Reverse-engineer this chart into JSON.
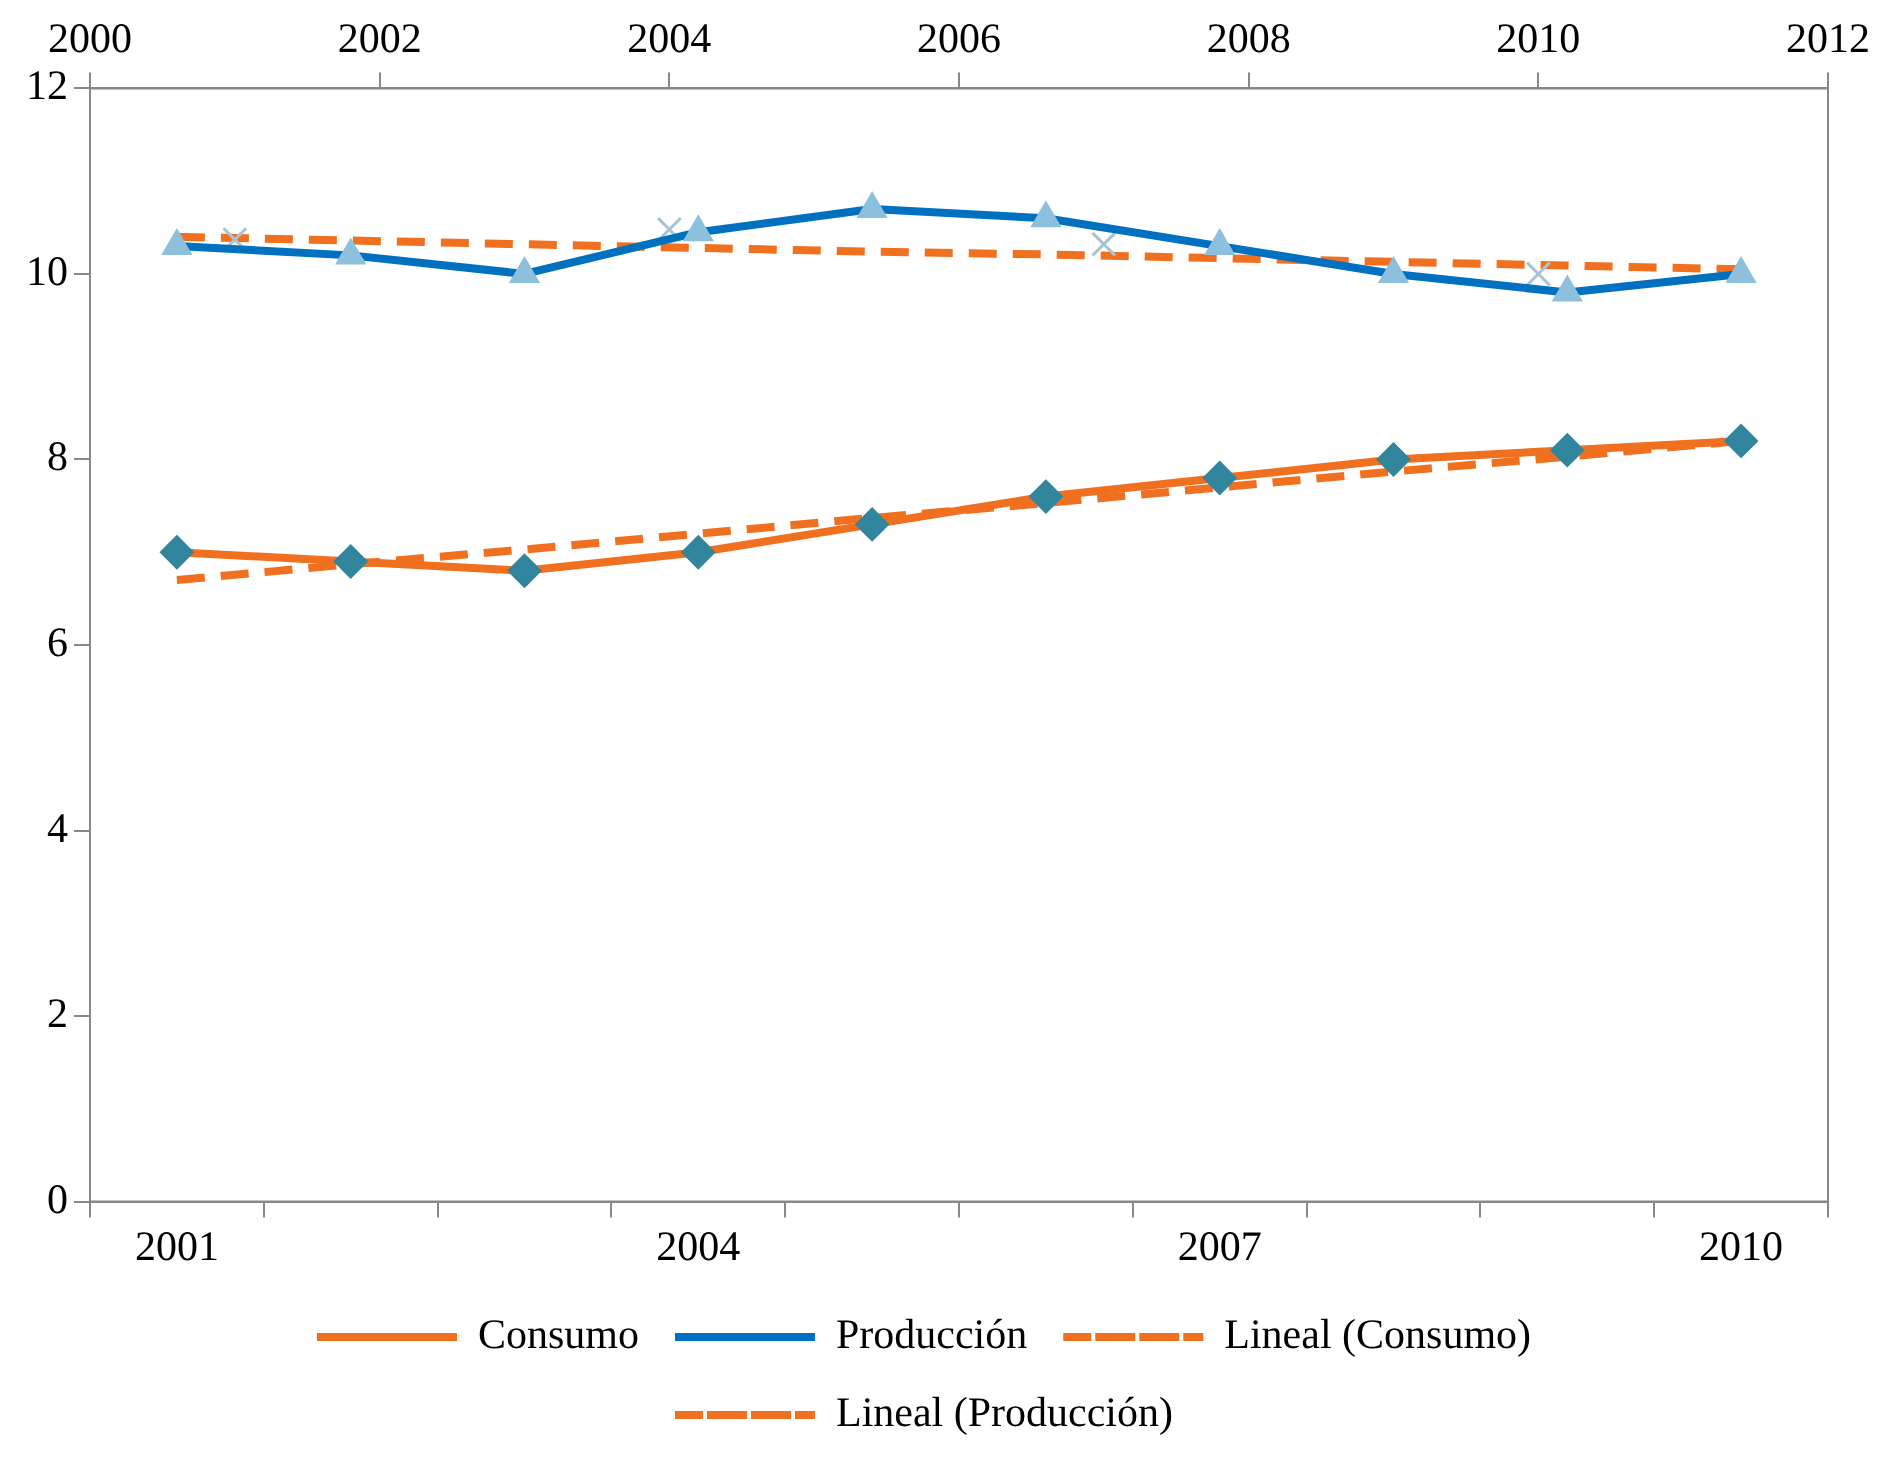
{
  "chart_data": {
    "type": "line",
    "categories": [
      "2001",
      null,
      null,
      "2004",
      null,
      null,
      "2007",
      null,
      null,
      "2010"
    ],
    "ylim": [
      0,
      12
    ],
    "yticks": [
      0,
      2,
      4,
      6,
      8,
      10,
      12
    ],
    "x2lim": [
      2000,
      2012
    ],
    "x2ticks": [
      2000,
      2002,
      2004,
      2006,
      2008,
      2010,
      2012
    ],
    "grid": false,
    "legend": "bottom",
    "series": [
      {
        "name": "Consumo",
        "type": "line",
        "color": "#f07020",
        "colors": [
          "#31859c",
          "#31859c",
          "#31859c",
          "#31859c",
          "#31859c",
          "#31859c",
          "#31859c",
          "#31859c",
          "#31859c",
          "#31859c"
        ],
        "marker": "diamond",
        "values": [
          7.0,
          6.9,
          6.8,
          7.0,
          7.3,
          7.6,
          7.8,
          8.0,
          8.1,
          8.2
        ]
      },
      {
        "name": "Producción",
        "type": "line",
        "axis": "x2",
        "color": "#0070c0",
        "colors": [
          "#8cc0dc",
          "#8cc0dc",
          "#8cc0dc",
          "#8cc0dc",
          "#8cc0dc",
          "#8cc0dc",
          "#8cc0dc",
          "#8cc0dc",
          "#8cc0dc",
          "#8cc0dc"
        ],
        "marker": "triangle",
        "x": [
          2000.6,
          2001.8,
          2003.0,
          2004.2,
          2005.4,
          2006.6,
          2007.8,
          2009.0,
          2010.2,
          2011.4
        ],
        "values": [
          10.3,
          10.2,
          10.0,
          10.45,
          10.7,
          10.6,
          10.3,
          10.0,
          9.8,
          10.0
        ]
      },
      {
        "type": "scatter",
        "axis": "x2",
        "color": "#a8c4d4",
        "marker": "cross",
        "x": [
          2001,
          2004,
          2007,
          2010
        ],
        "values": [
          10.37,
          10.48,
          10.32,
          10.0
        ]
      },
      {
        "name": "Lineal (Consumo)",
        "type": "line",
        "color": "#f07020",
        "line_style": "dashed",
        "marker": "none",
        "values": [
          6.7,
          6.87,
          7.03,
          7.2,
          7.37,
          7.53,
          7.7,
          7.87,
          8.03,
          8.2
        ]
      },
      {
        "name": "Lineal (Producción)",
        "type": "line",
        "color": "#f07020",
        "line_style": "dashed",
        "marker": "none",
        "values": [
          10.4,
          10.36,
          10.32,
          10.28,
          10.24,
          10.21,
          10.17,
          10.13,
          10.09,
          10.05
        ]
      }
    ]
  }
}
